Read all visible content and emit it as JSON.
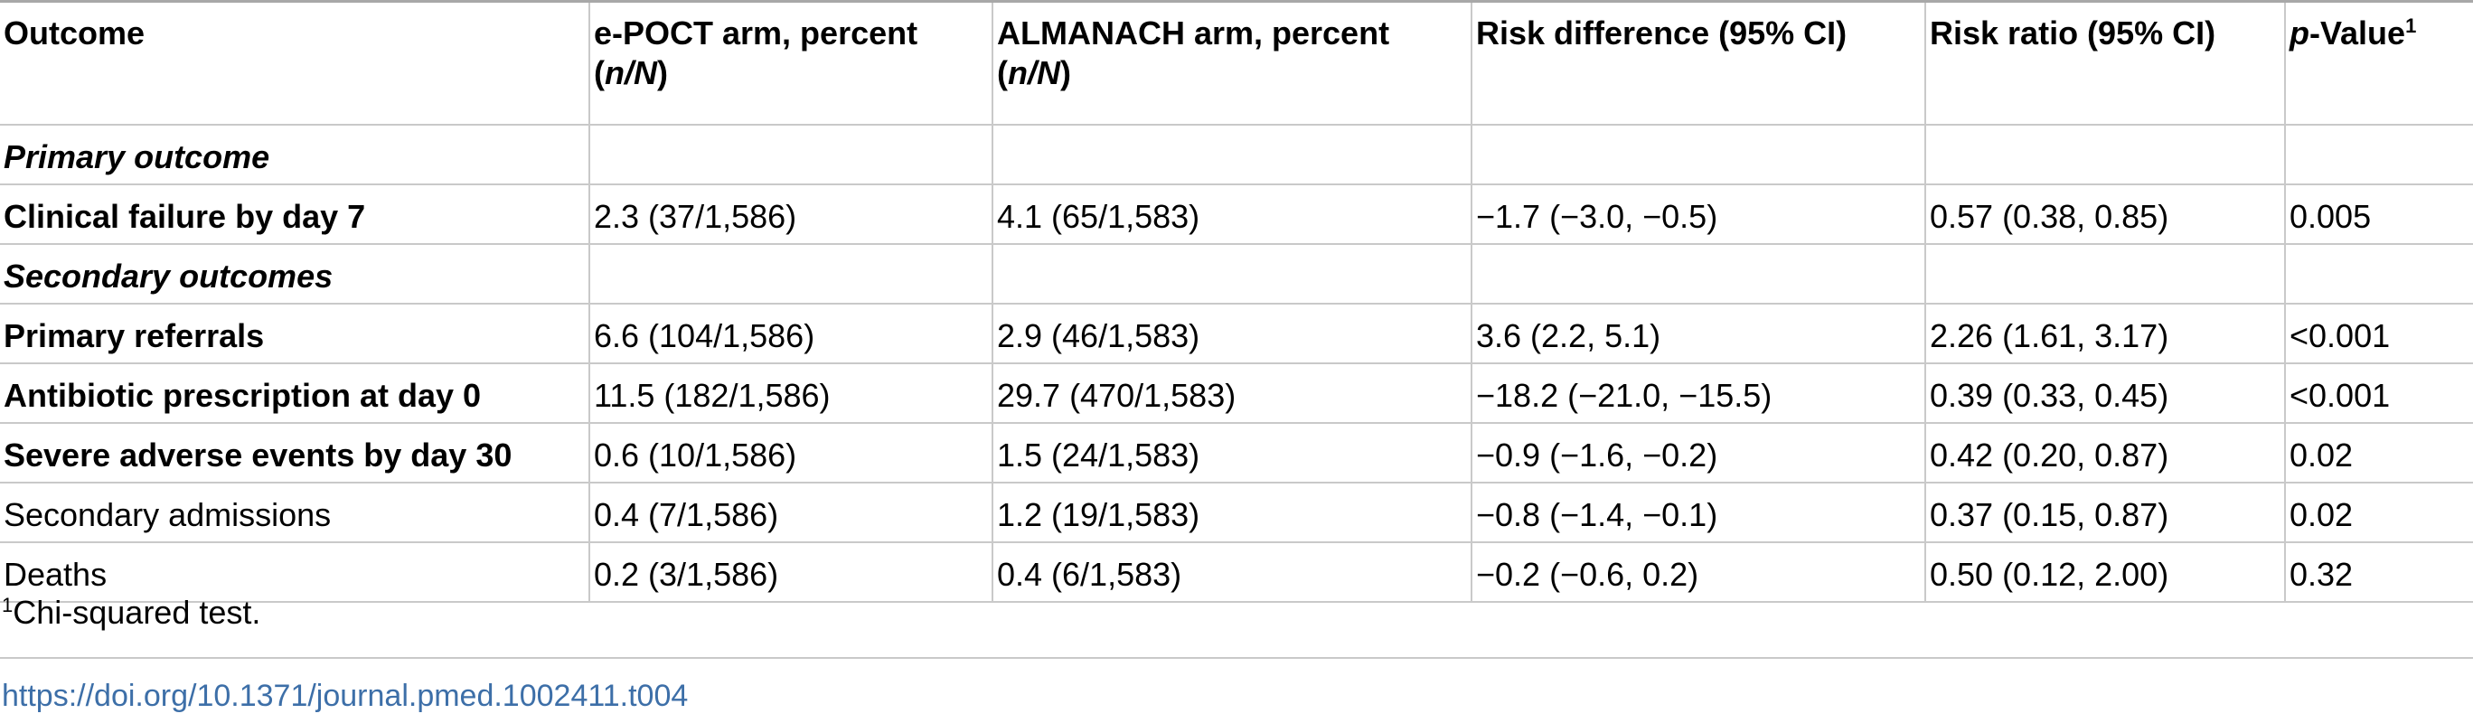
{
  "table": {
    "columns": {
      "outcome": "Outcome",
      "epoct_line1": "e-POCT arm, percent",
      "almanach_line1": "ALMANACH arm, percent",
      "nN": "n/N",
      "risk_difference": "Risk difference (95% CI)",
      "risk_ratio": "Risk ratio (95% CI)",
      "p_italic": "p",
      "p_rest": "-Value",
      "p_sup": "1"
    },
    "sections": {
      "primary": "Primary outcome",
      "secondary": "Secondary outcomes"
    },
    "rows": [
      {
        "outcome": "Clinical failure by day 7",
        "epoct": "2.3 (37/1,586)",
        "almanach": "4.1 (65/1,583)",
        "rd": "−1.7 (−3.0, −0.5)",
        "rr": "0.57 (0.38, 0.85)",
        "p": "0.005"
      },
      {
        "outcome": "Primary referrals",
        "epoct": "6.6 (104/1,586)",
        "almanach": "2.9 (46/1,583)",
        "rd": "3.6 (2.2, 5.1)",
        "rr": "2.26 (1.61, 3.17)",
        "p": "<0.001"
      },
      {
        "outcome": "Antibiotic prescription at day 0",
        "epoct": "11.5 (182/1,586)",
        "almanach": "29.7 (470/1,583)",
        "rd": "−18.2 (−21.0, −15.5)",
        "rr": "0.39 (0.33, 0.45)",
        "p": "<0.001"
      },
      {
        "outcome": "Severe adverse events by day 30",
        "epoct": "0.6 (10/1,586)",
        "almanach": "1.5 (24/1,583)",
        "rd": "−0.9 (−1.6, −0.2)",
        "rr": "0.42 (0.20, 0.87)",
        "p": "0.02"
      },
      {
        "outcome": "Secondary admissions",
        "epoct": "0.4 (7/1,586)",
        "almanach": "1.2 (19/1,583)",
        "rd": "−0.8 (−1.4, −0.1)",
        "rr": "0.37 (0.15, 0.87)",
        "p": "0.02"
      },
      {
        "outcome": "Deaths",
        "epoct": "0.2 (3/1,586)",
        "almanach": "0.4 (6/1,583)",
        "rd": "−0.2 (−0.6, 0.2)",
        "rr": "0.50 (0.12, 2.00)",
        "p": "0.32"
      }
    ]
  },
  "footnote": {
    "marker": "1",
    "text": "Chi-squared test."
  },
  "doi": "https://doi.org/10.1371/journal.pmed.1002411.t004"
}
